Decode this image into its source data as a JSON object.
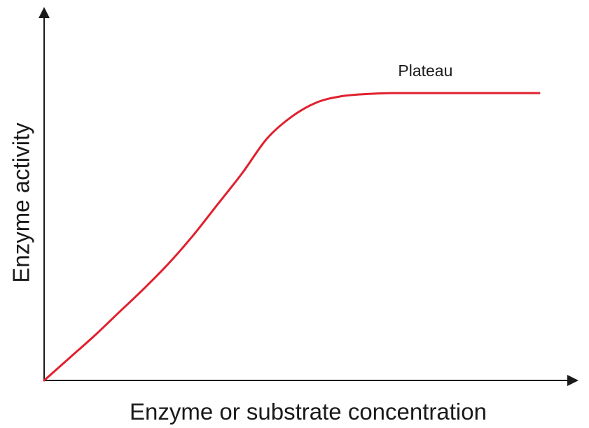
{
  "chart_data": {
    "type": "line",
    "title": "",
    "xlabel": "Enzyme or substrate concentration",
    "ylabel": "Enzyme activity",
    "xlim": [
      0,
      100
    ],
    "ylim": [
      0,
      100
    ],
    "grid": false,
    "show_ticks": false,
    "series": [
      {
        "color": "#e0202e",
        "points": [
          [
            0,
            0
          ],
          [
            5,
            7
          ],
          [
            10,
            14
          ],
          [
            15,
            21.5
          ],
          [
            20,
            29
          ],
          [
            25,
            37
          ],
          [
            30,
            46
          ],
          [
            35,
            56
          ],
          [
            40,
            66
          ],
          [
            45,
            77
          ],
          [
            50,
            84
          ],
          [
            55,
            88.5
          ],
          [
            60,
            90.5
          ],
          [
            65,
            91.2
          ],
          [
            70,
            91.5
          ],
          [
            80,
            91.5
          ],
          [
            90,
            91.5
          ],
          [
            100,
            91.5
          ]
        ]
      }
    ],
    "annotations": [
      {
        "text": "Plateau",
        "x": 77,
        "y": 100
      }
    ],
    "axis_color": "#1a1a1a"
  }
}
